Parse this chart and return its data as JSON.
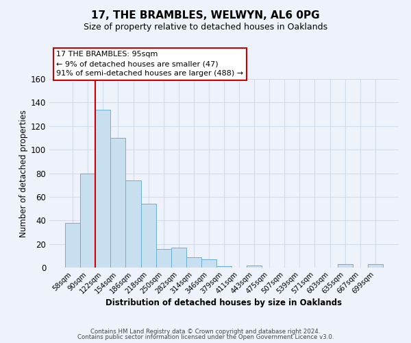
{
  "title": "17, THE BRAMBLES, WELWYN, AL6 0PG",
  "subtitle": "Size of property relative to detached houses in Oaklands",
  "xlabel": "Distribution of detached houses by size in Oaklands",
  "ylabel": "Number of detached properties",
  "bar_labels": [
    "58sqm",
    "90sqm",
    "122sqm",
    "154sqm",
    "186sqm",
    "218sqm",
    "250sqm",
    "282sqm",
    "314sqm",
    "346sqm",
    "379sqm",
    "411sqm",
    "443sqm",
    "475sqm",
    "507sqm",
    "539sqm",
    "571sqm",
    "603sqm",
    "635sqm",
    "667sqm",
    "699sqm"
  ],
  "bar_values": [
    38,
    80,
    134,
    110,
    74,
    54,
    16,
    17,
    9,
    7,
    1,
    0,
    2,
    0,
    0,
    0,
    0,
    0,
    3,
    0,
    3
  ],
  "bar_color": "#c8dff0",
  "bar_edge_color": "#6baed6",
  "vline_x": 1.5,
  "vline_color": "#cc0000",
  "ylim": [
    0,
    160
  ],
  "yticks": [
    0,
    20,
    40,
    60,
    80,
    100,
    120,
    140,
    160
  ],
  "annotation_box_text": "17 THE BRAMBLES: 95sqm\n← 9% of detached houses are smaller (47)\n91% of semi-detached houses are larger (488) →",
  "footer_line1": "Contains HM Land Registry data © Crown copyright and database right 2024.",
  "footer_line2": "Contains public sector information licensed under the Open Government Licence v3.0.",
  "background_color": "#eef2fa",
  "grid_color": "#d8e4f0",
  "box_edge_color": "#cc0000",
  "title_fontsize": 11,
  "subtitle_fontsize": 9
}
